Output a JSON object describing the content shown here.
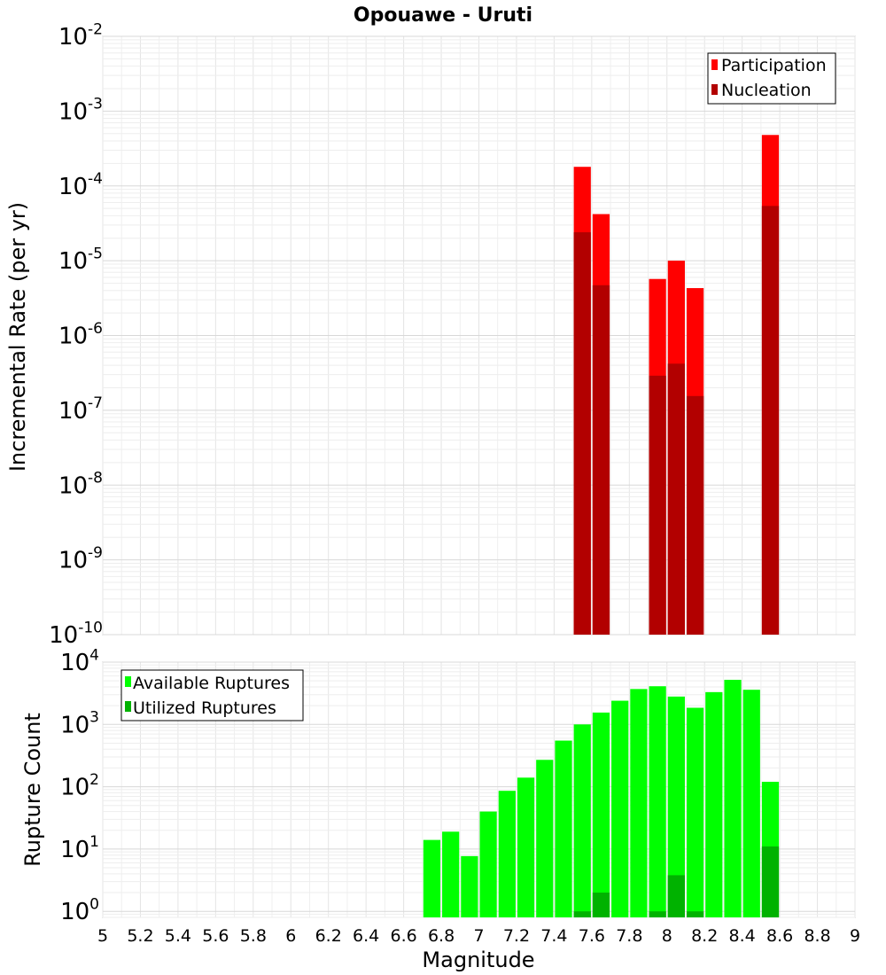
{
  "chart_data": [
    {
      "type": "bar",
      "title": "Opouawe - Uruti",
      "xlabel": "",
      "ylabel": "Incremental Rate (per yr)",
      "yscale": "log",
      "ylim": [
        1e-10,
        0.01
      ],
      "xlim": [
        5,
        9
      ],
      "ytick_exponents": [
        -2,
        -3,
        -4,
        -5,
        -6,
        -7,
        -8,
        -9,
        -10
      ],
      "bar_width": 0.1,
      "grid": true,
      "legend_position": "top-right",
      "colors": {
        "participation": "#ff0000",
        "nucleation": "#b20000"
      },
      "series": [
        {
          "name": "Participation",
          "x": [
            7.55,
            7.65,
            7.95,
            8.05,
            8.15,
            8.55
          ],
          "values": [
            0.00018,
            4.2e-05,
            5.7e-06,
            1e-05,
            4.3e-06,
            0.00048
          ]
        },
        {
          "name": "Nucleation",
          "x": [
            7.55,
            7.65,
            7.95,
            8.05,
            8.15,
            8.55
          ],
          "values": [
            2.4e-05,
            4.7e-06,
            2.9e-07,
            4.2e-07,
            1.55e-07,
            5.4e-05
          ]
        }
      ]
    },
    {
      "type": "bar",
      "title": "",
      "xlabel": "Magnitude",
      "ylabel": "Rupture Count",
      "yscale": "log",
      "ylim": [
        0.8,
        10000
      ],
      "xlim": [
        5,
        9
      ],
      "ytick_exponents": [
        4,
        3,
        2,
        1,
        0
      ],
      "xticks": [
        "5",
        "5.2",
        "5.4",
        "5.6",
        "5.8",
        "6",
        "6.2",
        "6.4",
        "6.6",
        "6.8",
        "7",
        "7.2",
        "7.4",
        "7.6",
        "7.8",
        "8",
        "8.2",
        "8.4",
        "8.6",
        "8.8",
        "9"
      ],
      "bar_width": 0.1,
      "grid": true,
      "legend_position": "top-left",
      "colors": {
        "available": "#00ff00",
        "utilized": "#00b200"
      },
      "series": [
        {
          "name": "Available Ruptures",
          "x": [
            6.75,
            6.85,
            6.95,
            7.05,
            7.15,
            7.25,
            7.35,
            7.45,
            7.55,
            7.65,
            7.75,
            7.85,
            7.95,
            8.05,
            8.15,
            8.25,
            8.35,
            8.45,
            8.55
          ],
          "values": [
            14,
            19,
            7.7,
            40,
            86,
            140,
            270,
            550,
            1000,
            1550,
            2400,
            3700,
            4100,
            2800,
            1850,
            3300,
            5200,
            3600,
            120
          ]
        },
        {
          "name": "Utilized Ruptures",
          "x": [
            7.55,
            7.65,
            7.95,
            8.05,
            8.15,
            8.55
          ],
          "values": [
            1,
            2,
            1,
            3.8,
            1,
            11
          ]
        }
      ]
    }
  ]
}
